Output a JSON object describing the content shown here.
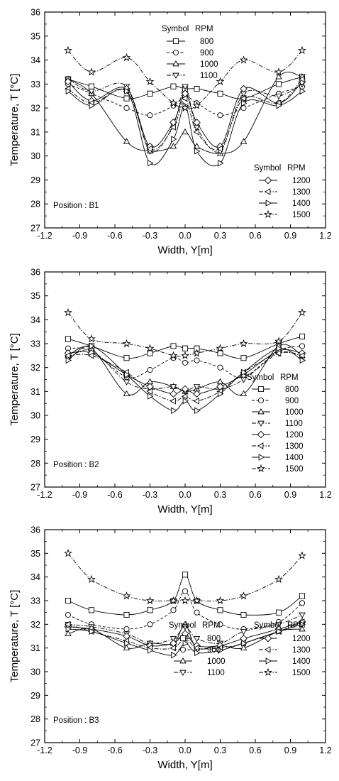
{
  "chart_data": [
    {
      "type": "line",
      "annotation": "Position : B1",
      "xlabel": "Width, Y[m]",
      "ylabel": "Temperature, T [°C]",
      "xlim": [
        -1.2,
        1.2
      ],
      "ylim": [
        27,
        36
      ],
      "xticks": [
        "-1.2",
        "-0.9",
        "-0.6",
        "-0.3",
        "0.0",
        "0.3",
        "0.6",
        "0.9",
        "1.2"
      ],
      "yticks": [
        "27",
        "28",
        "29",
        "30",
        "31",
        "32",
        "33",
        "34",
        "35",
        "36"
      ],
      "legend_header": {
        "symbol": "Symbol",
        "rpm": "RPM"
      },
      "legend_groups": [
        [
          "800",
          "900",
          "1000",
          "1100"
        ],
        [
          "1200",
          "1300",
          "1400",
          "1500"
        ]
      ],
      "x": [
        -1.0,
        -0.8,
        -0.5,
        -0.3,
        -0.1,
        0.0,
        0.1,
        0.3,
        0.5,
        0.8,
        1.0
      ],
      "series": [
        {
          "name": "800",
          "marker": "square",
          "dash": "solid",
          "values": [
            33.2,
            32.9,
            32.4,
            32.6,
            32.9,
            32.8,
            32.8,
            32.6,
            32.4,
            33.0,
            33.3
          ]
        },
        {
          "name": "900",
          "marker": "circle",
          "dash": "dash",
          "values": [
            33.0,
            32.6,
            32.0,
            31.7,
            32.1,
            32.5,
            32.2,
            31.7,
            32.0,
            32.6,
            32.9
          ]
        },
        {
          "name": "1000",
          "marker": "triangle-up",
          "dash": "solid",
          "values": [
            33.2,
            32.6,
            30.6,
            30.2,
            30.4,
            31.0,
            30.4,
            30.1,
            30.6,
            33.3,
            33.3
          ]
        },
        {
          "name": "1100",
          "marker": "triangle-down",
          "dash": "dashdot",
          "values": [
            33.2,
            32.7,
            32.9,
            30.2,
            31.3,
            32.9,
            31.2,
            30.2,
            32.6,
            32.5,
            33.0
          ]
        },
        {
          "name": "1200",
          "marker": "diamond",
          "dash": "solid",
          "values": [
            33.1,
            32.3,
            32.8,
            30.4,
            31.4,
            32.6,
            31.4,
            30.4,
            32.8,
            32.2,
            33.1
          ]
        },
        {
          "name": "1300",
          "marker": "triangle-left",
          "dash": "dashdot",
          "values": [
            32.8,
            32.2,
            32.7,
            30.3,
            31.2,
            32.4,
            31.0,
            30.3,
            32.4,
            32.2,
            33.2
          ]
        },
        {
          "name": "1400",
          "marker": "triangle-right",
          "dash": "solid",
          "values": [
            32.7,
            32.1,
            32.7,
            29.7,
            30.7,
            32.1,
            30.2,
            29.7,
            32.2,
            32.1,
            32.7
          ]
        },
        {
          "name": "1500",
          "marker": "star",
          "dash": "dashdot",
          "values": [
            34.4,
            33.5,
            34.1,
            33.1,
            32.2,
            32.0,
            32.1,
            33.1,
            34.0,
            33.5,
            34.4
          ]
        }
      ]
    },
    {
      "type": "line",
      "annotation": "Position : B2",
      "xlabel": "Width, Y[m]",
      "ylabel": "Temperature, T [°C]",
      "xlim": [
        -1.2,
        1.2
      ],
      "ylim": [
        27,
        36
      ],
      "xticks": [
        "-1.2",
        "-0.9",
        "-0.6",
        "-0.3",
        "0.0",
        "0.3",
        "0.6",
        "0.9",
        "1.2"
      ],
      "yticks": [
        "27",
        "28",
        "29",
        "30",
        "31",
        "32",
        "33",
        "34",
        "35",
        "36"
      ],
      "legend_header": {
        "symbol": "Symbol",
        "rpm": "RPM"
      },
      "legend_groups": [
        [
          "800",
          "900",
          "1000",
          "1100",
          "1200",
          "1300",
          "1400",
          "1500"
        ]
      ],
      "x": [
        -1.0,
        -0.8,
        -0.5,
        -0.3,
        -0.1,
        0.0,
        0.1,
        0.3,
        0.5,
        0.8,
        1.0
      ],
      "series": [
        {
          "name": "800",
          "marker": "square",
          "dash": "solid",
          "values": [
            33.2,
            32.9,
            32.4,
            32.6,
            32.9,
            32.8,
            32.8,
            32.6,
            32.4,
            33.0,
            33.3
          ]
        },
        {
          "name": "900",
          "marker": "circle",
          "dash": "dash",
          "values": [
            32.8,
            32.7,
            31.6,
            31.9,
            32.4,
            32.2,
            32.3,
            32.0,
            31.6,
            32.7,
            32.9
          ]
        },
        {
          "name": "1000",
          "marker": "triangle-up",
          "dash": "solid",
          "values": [
            32.5,
            32.8,
            30.9,
            31.4,
            31.2,
            31.0,
            31.1,
            31.4,
            30.9,
            32.9,
            32.5
          ]
        },
        {
          "name": "1100",
          "marker": "triangle-down",
          "dash": "dashdot",
          "values": [
            32.4,
            32.7,
            31.4,
            31.1,
            31.2,
            31.0,
            31.2,
            31.1,
            31.5,
            32.6,
            32.5
          ]
        },
        {
          "name": "1200",
          "marker": "diamond",
          "dash": "solid",
          "values": [
            32.6,
            32.6,
            31.7,
            31.2,
            30.9,
            31.1,
            30.9,
            31.2,
            31.7,
            32.7,
            32.6
          ]
        },
        {
          "name": "1300",
          "marker": "triangle-left",
          "dash": "dashdot",
          "values": [
            32.5,
            32.5,
            31.8,
            31.0,
            30.6,
            30.8,
            30.6,
            31.0,
            31.8,
            32.6,
            32.5
          ]
        },
        {
          "name": "1400",
          "marker": "triangle-right",
          "dash": "solid",
          "values": [
            32.3,
            32.9,
            31.7,
            30.8,
            30.2,
            30.6,
            30.2,
            30.9,
            31.8,
            32.8,
            32.3
          ]
        },
        {
          "name": "1500",
          "marker": "star",
          "dash": "dashdot",
          "values": [
            34.3,
            33.2,
            33.0,
            32.8,
            32.5,
            32.5,
            32.6,
            32.8,
            33.0,
            33.1,
            34.3
          ]
        }
      ]
    },
    {
      "type": "line",
      "annotation": "Position : B3",
      "xlabel": "Width, Y[m]",
      "ylabel": "Temperature, T [°C]",
      "xlim": [
        -1.2,
        1.2
      ],
      "ylim": [
        27,
        36
      ],
      "xticks": [
        "-1.2",
        "-0.9",
        "-0.6",
        "-0.3",
        "0.0",
        "0.3",
        "0.6",
        "0.9",
        "1.2"
      ],
      "yticks": [
        "27",
        "28",
        "29",
        "30",
        "31",
        "32",
        "33",
        "34",
        "35",
        "36"
      ],
      "legend_header": {
        "symbol": "Symbol",
        "rpm": "RPM"
      },
      "legend_groups": [
        [
          "800",
          "900",
          "1000",
          "1100"
        ],
        [
          "1200",
          "1300",
          "1400",
          "1500"
        ]
      ],
      "x": [
        -1.0,
        -0.8,
        -0.5,
        -0.3,
        -0.1,
        0.0,
        0.1,
        0.3,
        0.5,
        0.8,
        1.0
      ],
      "series": [
        {
          "name": "800",
          "marker": "square",
          "dash": "solid",
          "values": [
            33.0,
            32.6,
            32.4,
            32.6,
            33.0,
            34.1,
            33.0,
            32.6,
            32.4,
            32.5,
            33.2
          ]
        },
        {
          "name": "900",
          "marker": "circle",
          "dash": "dash",
          "values": [
            32.4,
            32.0,
            31.8,
            32.0,
            32.6,
            33.4,
            32.5,
            32.0,
            31.8,
            32.1,
            32.9
          ]
        },
        {
          "name": "1000",
          "marker": "triangle-up",
          "dash": "solid",
          "values": [
            31.6,
            31.8,
            31.0,
            31.2,
            31.2,
            32.0,
            31.0,
            31.1,
            31.0,
            31.7,
            31.8
          ]
        },
        {
          "name": "1100",
          "marker": "triangle-down",
          "dash": "dashdot",
          "values": [
            32.0,
            31.9,
            31.6,
            31.2,
            31.4,
            31.9,
            31.4,
            31.2,
            31.7,
            32.0,
            32.4
          ]
        },
        {
          "name": "1200",
          "marker": "diamond",
          "dash": "solid",
          "values": [
            31.9,
            31.8,
            31.5,
            31.1,
            31.2,
            31.6,
            31.1,
            31.1,
            31.4,
            31.8,
            32.1
          ]
        },
        {
          "name": "1300",
          "marker": "triangle-left",
          "dash": "dashdot",
          "values": [
            32.0,
            31.7,
            31.3,
            31.0,
            31.0,
            31.4,
            31.0,
            31.0,
            31.2,
            31.7,
            32.1
          ]
        },
        {
          "name": "1400",
          "marker": "triangle-right",
          "dash": "solid",
          "values": [
            31.8,
            31.7,
            31.2,
            30.9,
            30.7,
            31.2,
            30.8,
            30.9,
            31.2,
            31.7,
            32.0
          ]
        },
        {
          "name": "1500",
          "marker": "star",
          "dash": "dashdot",
          "values": [
            35.0,
            33.9,
            33.2,
            33.0,
            33.0,
            33.0,
            33.0,
            33.0,
            33.2,
            33.9,
            34.9
          ]
        }
      ]
    }
  ]
}
